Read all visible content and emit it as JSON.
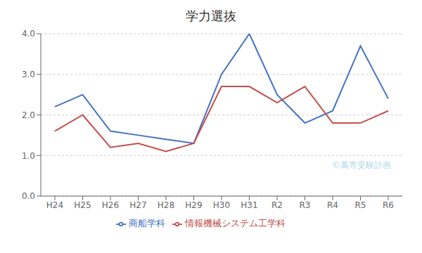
{
  "chart_data": {
    "type": "line",
    "title": "学力選抜",
    "categories": [
      "H24",
      "H25",
      "H26",
      "H27",
      "H28",
      "H29",
      "H30",
      "H31",
      "R2",
      "R3",
      "R4",
      "R5",
      "R6"
    ],
    "series": [
      {
        "name": "商船学科",
        "color": "#4472C4",
        "values": [
          2.2,
          2.5,
          1.6,
          1.5,
          1.4,
          1.3,
          3.0,
          4.0,
          2.5,
          1.8,
          2.1,
          3.7,
          2.4
        ]
      },
      {
        "name": "情報機械システム工学科",
        "color": "#C0504D",
        "values": [
          1.6,
          2.0,
          1.2,
          1.3,
          1.1,
          1.3,
          2.7,
          2.7,
          2.3,
          2.7,
          1.8,
          1.8,
          2.1
        ]
      }
    ],
    "ylim": [
      0.0,
      4.0
    ],
    "yticks": [
      {
        "value": 0.0,
        "label": "0.0"
      },
      {
        "value": 1.0,
        "label": "1.0"
      },
      {
        "value": 2.0,
        "label": "2.0"
      },
      {
        "value": 3.0,
        "label": "3.0"
      },
      {
        "value": 4.0,
        "label": "4.0"
      }
    ],
    "grid": "y",
    "legend": "bottom",
    "annotations": [
      {
        "text": "©高専受験計画",
        "color": "#ADD8E6"
      }
    ]
  }
}
